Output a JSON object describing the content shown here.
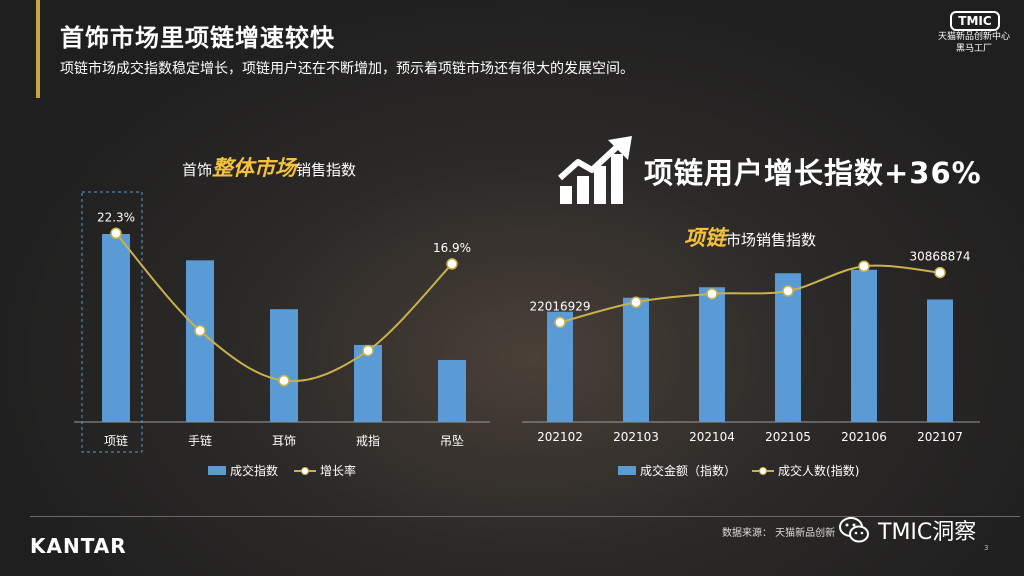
{
  "header": {
    "title": "首饰市场里项链增速较快",
    "subtitle": "项链市场成交指数稳定增长，项链用户还在不断增加，预示着项链市场还有很大的发展空间。"
  },
  "logo": {
    "badge": "TMIC",
    "line1": "天猫新品创新中心",
    "line2": "黑马工厂"
  },
  "headline": "项链用户增长指数+36%",
  "left_chart_title": {
    "prefix": "首饰",
    "accent": "整体市场",
    "suffix": "销售指数"
  },
  "right_chart_title": {
    "accent": "项链",
    "suffix": "市场销售指数"
  },
  "left_legend": {
    "bar": "成交指数",
    "line": "增长率"
  },
  "right_legend": {
    "bar": "成交金额（指数）",
    "line": "成交人数(指数)"
  },
  "footer": {
    "brand": "KANTAR",
    "source": "数据来源：  天猫新品创新",
    "watermark": "TMIC洞察",
    "page": "3"
  },
  "colors": {
    "bar": "#5b9bd5",
    "line": "#c9b24a",
    "accent": "#f5c23c",
    "gold": "#c9a24a"
  },
  "chart_data": [
    {
      "type": "bar",
      "categories": [
        "项链",
        "手链",
        "耳饰",
        "戒指",
        "吊坠"
      ],
      "series": [
        {
          "name": "成交指数",
          "type": "bar",
          "values": [
            100,
            86,
            60,
            41,
            33
          ]
        },
        {
          "name": "增长率",
          "type": "line",
          "values": [
            22.3,
            5.1,
            -3.7,
            1.6,
            16.9
          ],
          "labels": [
            "22.3%",
            "",
            "",
            "",
            "16.9%"
          ]
        }
      ],
      "highlight": "项链"
    },
    {
      "type": "bar",
      "categories": [
        "202102",
        "202103",
        "202104",
        "202105",
        "202106",
        "202107"
      ],
      "series": [
        {
          "name": "成交金额（指数）",
          "type": "bar",
          "values": [
            63,
            71,
            77,
            85,
            87,
            70
          ]
        },
        {
          "name": "成交人数(指数)",
          "type": "line",
          "values": [
            22016929,
            25600000,
            27100000,
            27600000,
            32000000,
            30868874
          ],
          "labels": [
            "22016929",
            "",
            "",
            "",
            "",
            "30868874"
          ]
        }
      ]
    }
  ]
}
